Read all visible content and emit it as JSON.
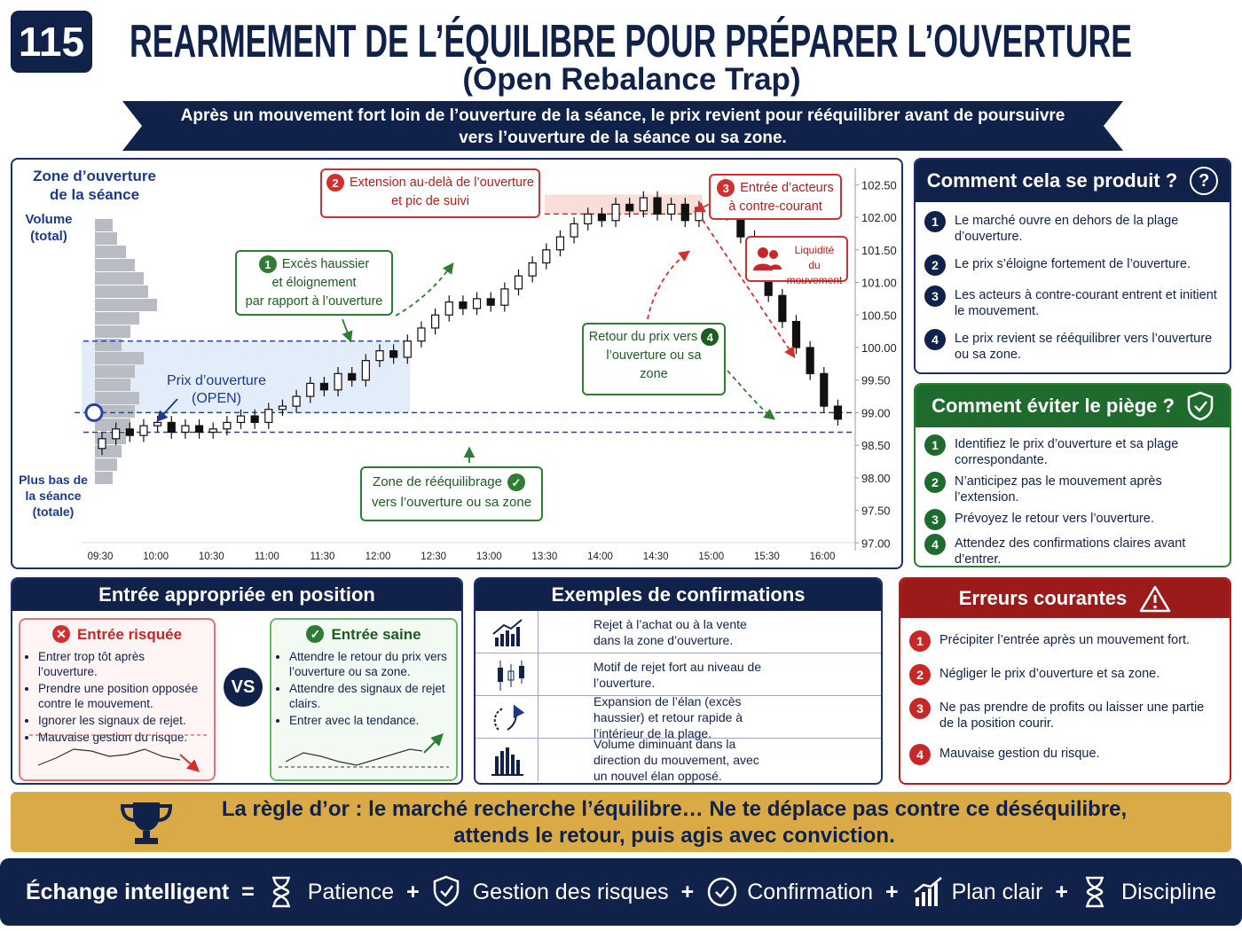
{
  "header": {
    "number": "115",
    "title": "REARMEMENT DE L’ÉQUILIBRE POUR PRÉPARER L’OUVERTURE",
    "subtitle": "(Open Rebalance Trap)",
    "banner": [
      "Après un mouvement fort loin de l’ouverture de la séance, le prix revient pour rééquilibrer avant de poursuivre",
      "vers l’ouverture de la séance ou sa zone."
    ]
  },
  "chart": {
    "type": "candlestick",
    "zone_label": [
      "Zone d’ouverture",
      "de la séance"
    ],
    "volume_label": [
      "Volume",
      "(total)"
    ],
    "low_label": [
      "Plus bas de",
      "la séance",
      "(totale)"
    ],
    "open_label": [
      "Prix d’ouverture",
      "(OPEN)"
    ],
    "callouts": [
      {
        "n": "1",
        "text": [
          "Excès haussier",
          "et éloignement",
          "par rapport à l’ouverture"
        ]
      },
      {
        "n": "2",
        "text": [
          "Extension au-delà de l’ouverture",
          "et pic de suivi"
        ]
      },
      {
        "n": "3",
        "text": [
          "Entrée d’acteurs",
          "à contre-courant"
        ]
      },
      {
        "n": "4",
        "text": [
          "Retour du prix vers",
          "l’ouverture ou sa",
          "zone"
        ]
      }
    ],
    "liquidity": [
      "Liquidité",
      "du mouvement"
    ],
    "rebalance_zone": [
      "Zone de rééquilibrage",
      "vers l’ouverture ou sa zone"
    ],
    "xticks": [
      "09:30",
      "10:00",
      "10:30",
      "11:00",
      "11:30",
      "12:00",
      "12:30",
      "13:00",
      "13:30",
      "14:00",
      "14:30",
      "15:00",
      "15:30",
      "16:00"
    ],
    "ylim": [
      96.8,
      102.75
    ],
    "yticks": [
      {
        "value": 102.5,
        "label": "102.50"
      },
      {
        "value": 102.0,
        "label": "102.00"
      },
      {
        "value": 101.5,
        "label": "101.50"
      },
      {
        "value": 101.0,
        "label": "101.00"
      },
      {
        "value": 100.5,
        "label": "100.50"
      },
      {
        "value": 100.0,
        "label": "100.00"
      },
      {
        "value": 99.5,
        "label": "99.50"
      },
      {
        "value": 99.0,
        "label": "99.00"
      },
      {
        "value": 98.5,
        "label": "98.50"
      },
      {
        "value": 98.0,
        "label": "98.00"
      },
      {
        "value": 97.5,
        "label": "97.50"
      },
      {
        "value": 97.0,
        "label": "97.00"
      }
    ],
    "open_price": 99.0,
    "zone_high": 100.1,
    "zone_low": 98.7,
    "extension_level": 102.05,
    "volume_profile": [
      20,
      25,
      35,
      45,
      55,
      60,
      70,
      50,
      40,
      30,
      55,
      45,
      40,
      50,
      45,
      40,
      35,
      30,
      25,
      20
    ],
    "candles": [
      [
        98.45,
        98.7,
        98.35,
        98.6
      ],
      [
        98.6,
        98.85,
        98.5,
        98.75
      ],
      [
        98.75,
        98.85,
        98.55,
        98.65
      ],
      [
        98.65,
        98.9,
        98.55,
        98.8
      ],
      [
        98.8,
        98.95,
        98.7,
        98.85
      ],
      [
        98.85,
        98.95,
        98.6,
        98.7
      ],
      [
        98.7,
        98.9,
        98.6,
        98.8
      ],
      [
        98.8,
        98.9,
        98.6,
        98.7
      ],
      [
        98.7,
        98.85,
        98.6,
        98.75
      ],
      [
        98.75,
        98.95,
        98.65,
        98.85
      ],
      [
        98.85,
        99.05,
        98.75,
        98.95
      ],
      [
        98.95,
        99.05,
        98.75,
        98.85
      ],
      [
        98.85,
        99.15,
        98.75,
        99.05
      ],
      [
        99.05,
        99.2,
        98.95,
        99.1
      ],
      [
        99.1,
        99.35,
        99.0,
        99.25
      ],
      [
        99.25,
        99.55,
        99.15,
        99.45
      ],
      [
        99.45,
        99.55,
        99.25,
        99.35
      ],
      [
        99.35,
        99.7,
        99.25,
        99.6
      ],
      [
        99.6,
        99.7,
        99.4,
        99.5
      ],
      [
        99.5,
        99.9,
        99.4,
        99.8
      ],
      [
        99.8,
        100.05,
        99.7,
        99.95
      ],
      [
        99.95,
        100.05,
        99.75,
        99.85
      ],
      [
        99.85,
        100.2,
        99.75,
        100.1
      ],
      [
        100.1,
        100.4,
        100.0,
        100.3
      ],
      [
        100.3,
        100.6,
        100.2,
        100.5
      ],
      [
        100.5,
        100.8,
        100.4,
        100.7
      ],
      [
        100.7,
        100.8,
        100.5,
        100.6
      ],
      [
        100.6,
        100.85,
        100.5,
        100.75
      ],
      [
        100.75,
        100.85,
        100.55,
        100.65
      ],
      [
        100.65,
        101.0,
        100.55,
        100.9
      ],
      [
        100.9,
        101.2,
        100.8,
        101.1
      ],
      [
        101.1,
        101.4,
        101.0,
        101.3
      ],
      [
        101.3,
        101.6,
        101.2,
        101.5
      ],
      [
        101.5,
        101.8,
        101.4,
        101.7
      ],
      [
        101.7,
        102.0,
        101.6,
        101.9
      ],
      [
        101.9,
        102.15,
        101.8,
        102.05
      ],
      [
        102.05,
        102.15,
        101.85,
        101.95
      ],
      [
        101.95,
        102.3,
        101.85,
        102.2
      ],
      [
        102.2,
        102.3,
        102.0,
        102.1
      ],
      [
        102.1,
        102.4,
        102.0,
        102.3
      ],
      [
        102.3,
        102.4,
        101.95,
        102.05
      ],
      [
        102.05,
        102.3,
        101.95,
        102.2
      ],
      [
        102.2,
        102.3,
        101.85,
        101.95
      ],
      [
        101.95,
        102.25,
        101.85,
        102.15
      ],
      [
        102.15,
        102.35,
        102.05,
        102.25
      ],
      [
        102.25,
        102.35,
        101.95,
        102.05
      ],
      [
        102.05,
        102.15,
        101.6,
        101.7
      ],
      [
        101.7,
        101.8,
        101.1,
        101.2
      ],
      [
        101.2,
        101.3,
        100.7,
        100.8
      ],
      [
        100.8,
        100.9,
        100.3,
        100.4
      ],
      [
        100.4,
        100.5,
        99.9,
        100.0
      ],
      [
        100.0,
        100.1,
        99.5,
        99.6
      ],
      [
        99.6,
        99.7,
        99.0,
        99.1
      ],
      [
        99.1,
        99.2,
        98.8,
        98.9
      ]
    ]
  },
  "how": {
    "title": "Comment cela se produit ?",
    "icon": "?",
    "items": [
      {
        "n": "1",
        "text": "Le marché ouvre en dehors de la plage d’ouverture."
      },
      {
        "n": "2",
        "text": "Le prix s’éloigne fortement de l’ouverture."
      },
      {
        "n": "3",
        "text": "Les acteurs à contre-courant entrent et initient le mouvement."
      },
      {
        "n": "4",
        "text": "Le prix revient se rééquilibrer vers l’ouverture ou sa zone."
      }
    ]
  },
  "avoid": {
    "title": "Comment éviter le piège ?",
    "items": [
      {
        "n": "1",
        "text": "Identifiez le prix d’ouverture et sa plage correspondante."
      },
      {
        "n": "2",
        "text": "N’anticipez pas le mouvement après l’extension."
      },
      {
        "n": "3",
        "text": "Prévoyez le retour vers l’ouverture."
      },
      {
        "n": "4",
        "text": "Attendez des confirmations claires avant d’entrer."
      }
    ]
  },
  "entry": {
    "title": "Entrée appropriée en position",
    "vs": "VS",
    "risky": {
      "title": "Entrée risquée",
      "items": [
        "Entrer trop tôt après l’ouverture.",
        "Prendre une position opposée contre le mouvement.",
        "Ignorer les signaux de rejet.",
        "Mauvaise gestion du risque."
      ]
    },
    "healthy": {
      "title": "Entrée saine",
      "items": [
        "Attendre le retour du prix vers l’ouverture ou sa zone.",
        "Attendre des signaux de rejet clairs.",
        "Entrer avec la tendance."
      ]
    }
  },
  "confirm": {
    "title": "Exemples de confirmations",
    "items": [
      "Rejet à l’achat ou à la vente dans la zone d’ouverture.",
      "Motif de rejet fort au niveau de l’ouverture.",
      "Expansion de l’élan (excès haussier) et retour rapide à l’intérieur de la plage.",
      "Volume diminuant dans la direction du mouvement, avec un nouvel élan opposé."
    ]
  },
  "errors": {
    "title": "Erreurs courantes",
    "items": [
      {
        "n": "1",
        "text": "Précipiter l’entrée après un mouvement fort."
      },
      {
        "n": "2",
        "text": "Négliger le prix d’ouverture et sa zone."
      },
      {
        "n": "3",
        "text": "Ne pas prendre de profits ou laisser une partie de la position courir."
      },
      {
        "n": "4",
        "text": "Mauvaise gestion du risque."
      }
    ]
  },
  "rule": [
    "La règle d’or : le marché recherche l’équilibre… Ne te déplace pas contre ce déséquilibre,",
    "attends le retour, puis agis avec conviction."
  ],
  "footer": {
    "lead": "Échange intelligent",
    "eq": "=",
    "plus": "+",
    "items": [
      "Patience",
      "Gestion des risques",
      "Confirmation",
      "Plan clair",
      "Discipline"
    ]
  }
}
